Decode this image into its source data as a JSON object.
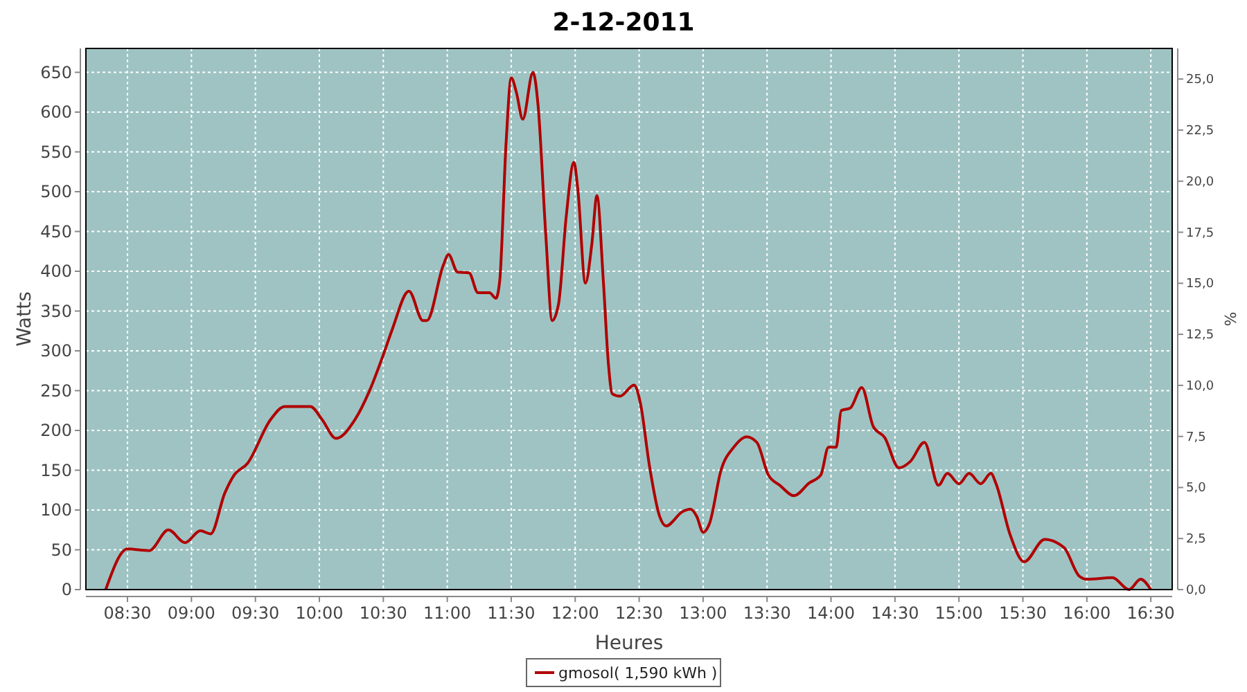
{
  "chart_data": {
    "type": "line",
    "title": "2-12-2011",
    "xlabel": "Heures",
    "ylabel": "Watts",
    "y2label": "%",
    "xlim": [
      8.175,
      16.667
    ],
    "xticks": [
      {
        "value": 8.5,
        "label": "08:30"
      },
      {
        "value": 9,
        "label": "09:00"
      },
      {
        "value": 9.5,
        "label": "09:30"
      },
      {
        "value": 10,
        "label": "10:00"
      },
      {
        "value": 10.5,
        "label": "10:30"
      },
      {
        "value": 11,
        "label": "11:00"
      },
      {
        "value": 11.5,
        "label": "11:30"
      },
      {
        "value": 12,
        "label": "12:00"
      },
      {
        "value": 12.5,
        "label": "12:30"
      },
      {
        "value": 13,
        "label": "13:00"
      },
      {
        "value": 13.5,
        "label": "13:30"
      },
      {
        "value": 14,
        "label": "14:00"
      },
      {
        "value": 14.5,
        "label": "14:30"
      },
      {
        "value": 15,
        "label": "15:00"
      },
      {
        "value": 15.5,
        "label": "15:30"
      },
      {
        "value": 16,
        "label": "16:00"
      },
      {
        "value": 16.5,
        "label": "16:30"
      }
    ],
    "ylim": [
      0,
      680
    ],
    "yticks": [
      0,
      50,
      100,
      150,
      200,
      250,
      300,
      350,
      400,
      450,
      500,
      550,
      600,
      650
    ],
    "y2lim": [
      0,
      26.5
    ],
    "y2ticks": [
      {
        "value": 0,
        "label": "0,0"
      },
      {
        "value": 2.5,
        "label": "2,5"
      },
      {
        "value": 5,
        "label": "5,0"
      },
      {
        "value": 7.5,
        "label": "7,5"
      },
      {
        "value": 10,
        "label": "10,0"
      },
      {
        "value": 12.5,
        "label": "12,5"
      },
      {
        "value": 15,
        "label": "15,0"
      },
      {
        "value": 17.5,
        "label": "17,5"
      },
      {
        "value": 20,
        "label": "20,0"
      },
      {
        "value": 22.5,
        "label": "22,5"
      },
      {
        "value": 25,
        "label": "25,0"
      }
    ],
    "grid": true,
    "legend": "bottom",
    "line_style": "solid",
    "series": [
      {
        "name": "gmosol( 1,590 kWh )",
        "color": "#b00000",
        "x": [
          8.33,
          8.5,
          8.67,
          8.82,
          8.95,
          9.07,
          9.15,
          9.26,
          9.33,
          9.44,
          9.62,
          9.73,
          9.93,
          10.02,
          10.13,
          10.28,
          10.39,
          10.5,
          10.57,
          10.7,
          10.81,
          10.84,
          10.97,
          11.01,
          11.08,
          11.17,
          11.24,
          11.33,
          11.38,
          11.41,
          11.46,
          11.5,
          11.54,
          11.59,
          11.67,
          11.71,
          11.77,
          11.82,
          11.87,
          11.93,
          11.99,
          12.02,
          12.08,
          12.13,
          12.17,
          12.22,
          12.26,
          12.29,
          12.35,
          12.46,
          12.51,
          12.58,
          12.66,
          12.71,
          12.84,
          12.9,
          12.95,
          13.0,
          13.05,
          13.14,
          13.24,
          13.34,
          13.42,
          13.51,
          13.6,
          13.71,
          13.83,
          13.92,
          13.98,
          14.04,
          14.08,
          14.15,
          14.24,
          14.33,
          14.42,
          14.53,
          14.62,
          14.73,
          14.84,
          14.91,
          15.0,
          15.08,
          15.17,
          15.25,
          15.29,
          15.4,
          15.51,
          15.67,
          15.82,
          15.94,
          16.0,
          16.2,
          16.33,
          16.42,
          16.5
        ],
        "values": [
          0,
          51,
          49,
          75,
          59,
          74,
          70,
          121,
          143,
          159,
          214,
          230,
          230,
          214,
          190,
          214,
          249,
          295,
          327,
          375,
          338,
          338,
          408,
          421,
          399,
          398,
          373,
          373,
          366,
          388,
          562,
          643,
          625,
          591,
          650,
          608,
          446,
          338,
          359,
          469,
          537,
          504,
          385,
          434,
          495,
          388,
          283,
          246,
          243,
          257,
          234,
          156,
          92,
          80,
          98,
          101,
          92,
          72,
          83,
          150,
          179,
          192,
          185,
          144,
          131,
          118,
          134,
          144,
          179,
          179,
          225,
          228,
          254,
          205,
          191,
          153,
          161,
          185,
          131,
          146,
          133,
          146,
          133,
          146,
          133,
          69,
          35,
          63,
          53,
          17,
          13,
          15,
          0,
          13,
          0
        ]
      }
    ]
  }
}
